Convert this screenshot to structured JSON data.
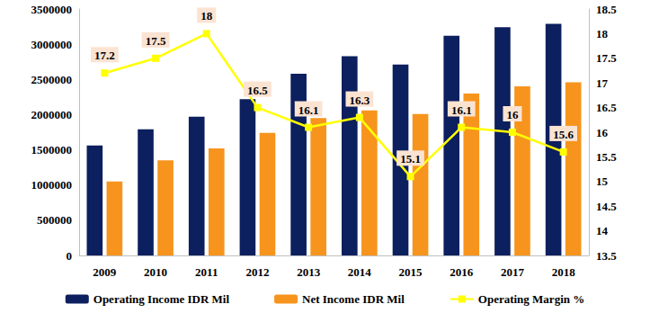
{
  "chart_data": {
    "type": "bar",
    "categories": [
      "2009",
      "2010",
      "2011",
      "2012",
      "2013",
      "2014",
      "2015",
      "2016",
      "2017",
      "2018"
    ],
    "series": [
      {
        "name": "Operating Income IDR Mil",
        "type": "bar",
        "color": "#0c1f5e",
        "values": [
          1560000,
          1790000,
          1970000,
          2220000,
          2580000,
          2830000,
          2710000,
          3120000,
          3240000,
          3290000
        ]
      },
      {
        "name": "Net Income IDR Mil",
        "type": "bar",
        "color": "#f7941d",
        "values": [
          1050000,
          1350000,
          1520000,
          1740000,
          1950000,
          2060000,
          2010000,
          2300000,
          2400000,
          2460000
        ]
      },
      {
        "name": "Operating Margin %",
        "type": "line",
        "axis": "y2",
        "color": "#ffff00",
        "marker": "square",
        "line_style": "solid",
        "data_labels": true,
        "values": [
          17.2,
          17.5,
          18,
          16.5,
          16.1,
          16.3,
          15.1,
          16.1,
          16,
          15.6
        ]
      }
    ],
    "ylim": [
      0,
      3500000
    ],
    "yticks": [
      0,
      500000,
      1000000,
      1500000,
      2000000,
      2500000,
      3000000,
      3500000
    ],
    "y2lim": [
      13.5,
      18.5
    ],
    "y2ticks": [
      13.5,
      14,
      14.5,
      15,
      15.5,
      16,
      16.5,
      17,
      17.5,
      18,
      18.5
    ],
    "grid": false,
    "legend": "bottom"
  }
}
